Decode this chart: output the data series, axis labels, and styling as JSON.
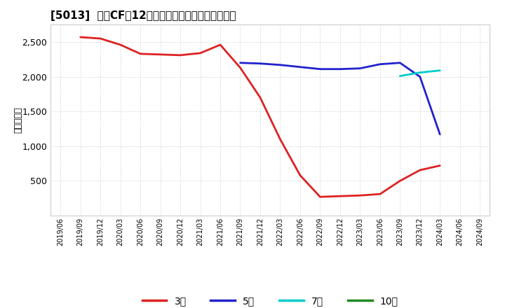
{
  "title": "[5013]  投賄CFだ12か月移動合計の標準偏差の推移",
  "ylabel": "（百万円）",
  "background_color": "#ffffff",
  "plot_bg_color": "#ffffff",
  "grid_color": "#bbbbbb",
  "ylim": [
    0,
    2750
  ],
  "yticks": [
    500,
    1000,
    1500,
    2000,
    2500
  ],
  "series": {
    "3年": {
      "color": "#dd2222",
      "linewidth": 2.0,
      "data": [
        [
          "2019/06",
          null
        ],
        [
          "2019/09",
          2570
        ],
        [
          "2019/12",
          2550
        ],
        [
          "2020/03",
          2460
        ],
        [
          "2020/06",
          2330
        ],
        [
          "2020/09",
          2320
        ],
        [
          "2020/12",
          2310
        ],
        [
          "2021/03",
          2340
        ],
        [
          "2021/06",
          2460
        ],
        [
          "2021/09",
          2130
        ],
        [
          "2021/12",
          1700
        ],
        [
          "2022/03",
          1100
        ],
        [
          "2022/06",
          580
        ],
        [
          "2022/09",
          270
        ],
        [
          "2022/12",
          280
        ],
        [
          "2023/03",
          290
        ],
        [
          "2023/06",
          310
        ],
        [
          "2023/09",
          500
        ],
        [
          "2023/12",
          655
        ],
        [
          "2024/03",
          720
        ],
        [
          "2024/06",
          null
        ],
        [
          "2024/09",
          null
        ]
      ]
    },
    "5年": {
      "color": "#2222cc",
      "linewidth": 2.0,
      "data": [
        [
          "2019/06",
          null
        ],
        [
          "2019/09",
          null
        ],
        [
          "2019/12",
          null
        ],
        [
          "2020/03",
          null
        ],
        [
          "2020/06",
          null
        ],
        [
          "2020/09",
          null
        ],
        [
          "2020/12",
          null
        ],
        [
          "2021/03",
          null
        ],
        [
          "2021/06",
          null
        ],
        [
          "2021/09",
          2200
        ],
        [
          "2021/12",
          2190
        ],
        [
          "2022/03",
          2170
        ],
        [
          "2022/06",
          2140
        ],
        [
          "2022/09",
          2110
        ],
        [
          "2022/12",
          2110
        ],
        [
          "2023/03",
          2120
        ],
        [
          "2023/06",
          2180
        ],
        [
          "2023/09",
          2200
        ],
        [
          "2023/12",
          2000
        ],
        [
          "2024/03",
          1170
        ],
        [
          "2024/06",
          null
        ],
        [
          "2024/09",
          null
        ]
      ]
    },
    "7年": {
      "color": "#00cccc",
      "linewidth": 2.0,
      "data": [
        [
          "2019/06",
          null
        ],
        [
          "2019/09",
          null
        ],
        [
          "2019/12",
          null
        ],
        [
          "2020/03",
          null
        ],
        [
          "2020/06",
          null
        ],
        [
          "2020/09",
          null
        ],
        [
          "2020/12",
          null
        ],
        [
          "2021/03",
          null
        ],
        [
          "2021/06",
          null
        ],
        [
          "2021/09",
          null
        ],
        [
          "2021/12",
          null
        ],
        [
          "2022/03",
          null
        ],
        [
          "2022/06",
          null
        ],
        [
          "2022/09",
          null
        ],
        [
          "2022/12",
          null
        ],
        [
          "2023/03",
          null
        ],
        [
          "2023/06",
          null
        ],
        [
          "2023/09",
          2010
        ],
        [
          "2023/12",
          2060
        ],
        [
          "2024/03",
          2090
        ],
        [
          "2024/06",
          null
        ],
        [
          "2024/09",
          null
        ]
      ]
    },
    "10年": {
      "color": "#228822",
      "linewidth": 2.0,
      "data": [
        [
          "2019/06",
          null
        ],
        [
          "2019/09",
          null
        ],
        [
          "2019/12",
          null
        ],
        [
          "2020/03",
          null
        ],
        [
          "2020/06",
          null
        ],
        [
          "2020/09",
          null
        ],
        [
          "2020/12",
          null
        ],
        [
          "2021/03",
          null
        ],
        [
          "2021/06",
          null
        ],
        [
          "2021/09",
          null
        ],
        [
          "2021/12",
          null
        ],
        [
          "2022/03",
          null
        ],
        [
          "2022/06",
          null
        ],
        [
          "2022/09",
          null
        ],
        [
          "2022/12",
          null
        ],
        [
          "2023/03",
          null
        ],
        [
          "2023/06",
          null
        ],
        [
          "2023/09",
          null
        ],
        [
          "2023/12",
          null
        ],
        [
          "2024/03",
          null
        ],
        [
          "2024/06",
          null
        ],
        [
          "2024/09",
          null
        ]
      ]
    }
  },
  "x_labels": [
    "2019/06",
    "2019/09",
    "2019/12",
    "2020/03",
    "2020/06",
    "2020/09",
    "2020/12",
    "2021/03",
    "2021/06",
    "2021/09",
    "2021/12",
    "2022/03",
    "2022/06",
    "2022/09",
    "2022/12",
    "2023/03",
    "2023/06",
    "2023/09",
    "2023/12",
    "2024/03",
    "2024/06",
    "2024/09"
  ],
  "legend_entries": [
    "3年",
    "5年",
    "7年",
    "10年"
  ],
  "legend_colors": [
    "#dd2222",
    "#2222cc",
    "#00cccc",
    "#228822"
  ]
}
